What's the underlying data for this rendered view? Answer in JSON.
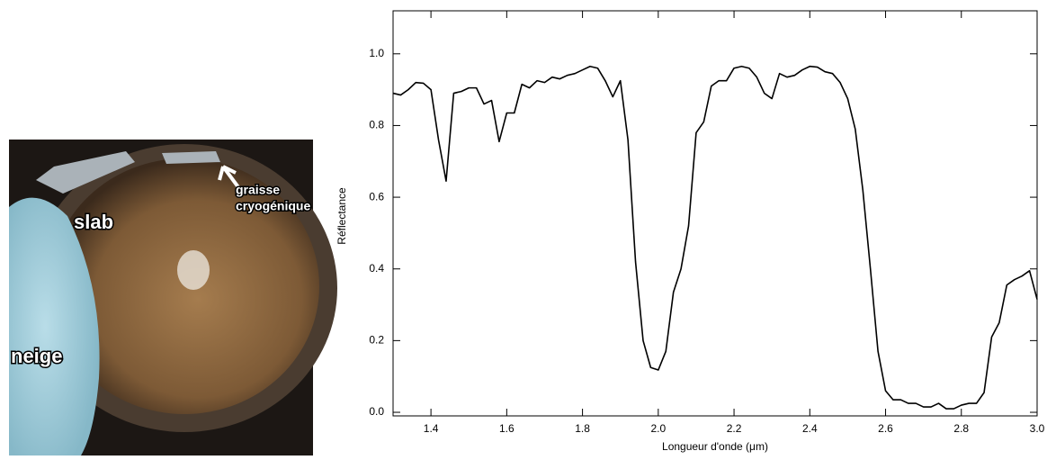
{
  "photo_labels": [
    "slab",
    "neige",
    "graisse",
    "cryogénique"
  ],
  "chart_data": {
    "type": "line",
    "x_label": "Longueur d'onde (μm)",
    "y_label": "Réflectance",
    "color": "#000000",
    "x": [
      1.3,
      1.32,
      1.34,
      1.36,
      1.38,
      1.4,
      1.42,
      1.44,
      1.46,
      1.48,
      1.5,
      1.52,
      1.54,
      1.56,
      1.58,
      1.6,
      1.62,
      1.64,
      1.66,
      1.68,
      1.7,
      1.72,
      1.74,
      1.76,
      1.78,
      1.8,
      1.82,
      1.84,
      1.86,
      1.88,
      1.9,
      1.92,
      1.94,
      1.96,
      1.98,
      2.0,
      2.02,
      2.04,
      2.06,
      2.08,
      2.1,
      2.12,
      2.14,
      2.16,
      2.18,
      2.2,
      2.22,
      2.24,
      2.26,
      2.28,
      2.3,
      2.32,
      2.34,
      2.36,
      2.38,
      2.4,
      2.42,
      2.44,
      2.46,
      2.48,
      2.5,
      2.52,
      2.54,
      2.56,
      2.58,
      2.6,
      2.62,
      2.64,
      2.66,
      2.68,
      2.7,
      2.72,
      2.74,
      2.76,
      2.78,
      2.8,
      2.82,
      2.84,
      2.86,
      2.88,
      2.9,
      2.92,
      2.94,
      2.96,
      2.98,
      3.0
    ],
    "values": [
      0.89,
      0.885,
      0.9,
      0.92,
      0.918,
      0.9,
      0.76,
      0.645,
      0.89,
      0.895,
      0.905,
      0.905,
      0.86,
      0.87,
      0.755,
      0.835,
      0.835,
      0.915,
      0.905,
      0.925,
      0.92,
      0.935,
      0.93,
      0.94,
      0.945,
      0.955,
      0.965,
      0.96,
      0.925,
      0.88,
      0.925,
      0.76,
      0.42,
      0.2,
      0.125,
      0.118,
      0.17,
      0.335,
      0.4,
      0.52,
      0.78,
      0.81,
      0.91,
      0.925,
      0.925,
      0.96,
      0.965,
      0.96,
      0.935,
      0.89,
      0.875,
      0.945,
      0.935,
      0.94,
      0.955,
      0.965,
      0.963,
      0.95,
      0.945,
      0.92,
      0.875,
      0.79,
      0.62,
      0.4,
      0.17,
      0.06,
      0.035,
      0.035,
      0.025,
      0.025,
      0.015,
      0.015,
      0.025,
      0.01,
      0.01,
      0.02,
      0.025,
      0.025,
      0.055,
      0.21,
      0.25,
      0.355,
      0.37,
      0.38,
      0.395,
      0.315
    ],
    "xlim": [
      1.3,
      3.0
    ],
    "ylim": [
      -0.01,
      1.12
    ],
    "xticks": [
      1.4,
      1.6,
      1.8,
      {
        "value": 2,
        "label": "2.0"
      },
      2.2,
      2.4,
      2.6,
      2.8,
      {
        "value": 3,
        "label": "3.0"
      }
    ],
    "yticks": [
      {
        "value": 0,
        "label": "0.0"
      },
      0.2,
      0.4,
      0.6,
      0.8,
      {
        "value": 1,
        "label": "1.0"
      }
    ]
  }
}
